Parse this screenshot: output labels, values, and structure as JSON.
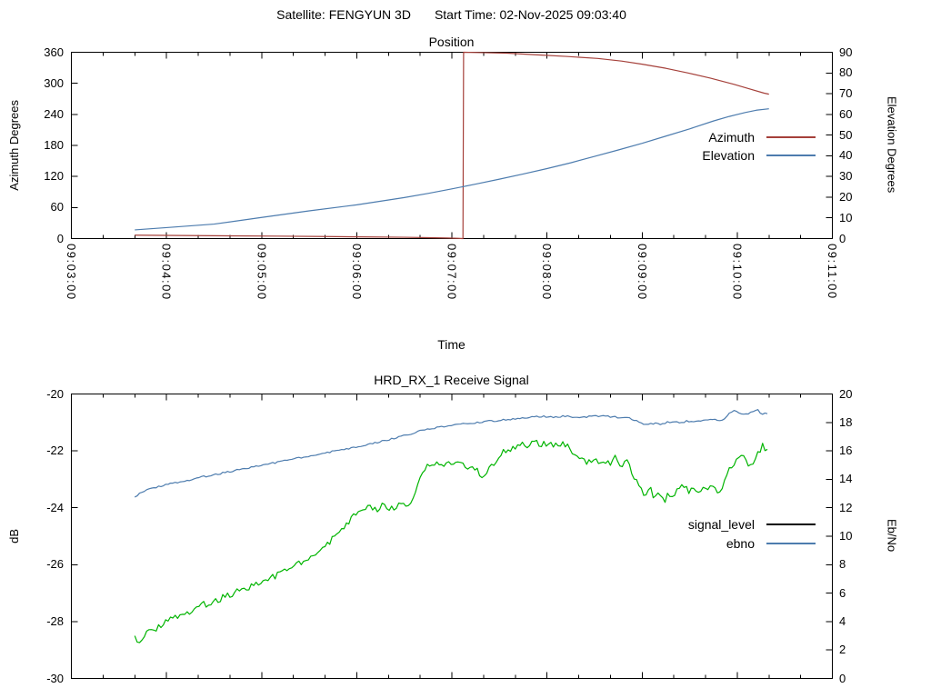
{
  "header": {
    "satellite_label": "Satellite: FENGYUN 3D",
    "start_time_label": "Start Time: 02-Nov-2025 09:03:40"
  },
  "colors": {
    "background": "#ffffff",
    "axis": "#000000",
    "azimuth_red": "#a5403a",
    "steel_blue": "#4d7cae",
    "signal_green": "#00b400",
    "legend_black": "#000000"
  },
  "chart_data": [
    {
      "type": "line",
      "title": "Position",
      "xlabel": "Time",
      "ylabel": "Azimuth Degrees",
      "y2label": "Elevation Degrees",
      "x_tick_labels": [
        "09:03:00",
        "09:04:00",
        "09:05:00",
        "09:06:00",
        "09:07:00",
        "09:08:00",
        "09:09:00",
        "09:10:00",
        "09:11:00"
      ],
      "x_unit": "seconds after 09:03:00",
      "x_range": [
        0,
        480
      ],
      "x_minor_tick_seconds": 20,
      "ylim": [
        0,
        360
      ],
      "y_ticks": [
        0,
        60,
        120,
        180,
        240,
        300,
        360
      ],
      "y2lim": [
        0,
        90
      ],
      "y2_ticks": [
        0,
        10,
        20,
        30,
        40,
        50,
        60,
        70,
        80,
        90
      ],
      "grid": false,
      "legend_position": "inside-right",
      "legend": [
        {
          "label": "Azimuth",
          "color": "#a5403a"
        },
        {
          "label": "Elevation",
          "color": "#4d7cae"
        }
      ],
      "series": [
        {
          "name": "Azimuth",
          "axis": "y1",
          "color": "#a5403a",
          "render_noise": 0,
          "points": [
            [
              40,
              6.6
            ],
            [
              70,
              5.9
            ],
            [
              100,
              5.3
            ],
            [
              130,
              4.7
            ],
            [
              160,
              3.9
            ],
            [
              190,
              3.1
            ],
            [
              210,
              2.5
            ],
            [
              225,
              1.8
            ],
            [
              237,
              1.1
            ],
            [
              244,
              0.5
            ],
            [
              247,
              0
            ],
            [
              247.4,
              360
            ],
            [
              260,
              359.2
            ],
            [
              275,
              358.3
            ],
            [
              294,
              355
            ],
            [
              312,
              352
            ],
            [
              332,
              348
            ],
            [
              347,
              343
            ],
            [
              360,
              337
            ],
            [
              375,
              329
            ],
            [
              389,
              320
            ],
            [
              403,
              310
            ],
            [
              418,
              298
            ],
            [
              428,
              289
            ],
            [
              437,
              281
            ],
            [
              440,
              279
            ]
          ]
        },
        {
          "name": "Elevation",
          "axis": "y2",
          "color": "#4d7cae",
          "render_noise": 0,
          "points": [
            [
              40,
              4.2
            ],
            [
              60,
              5.3
            ],
            [
              90,
              7.0
            ],
            [
              120,
              10.2
            ],
            [
              150,
              13.4
            ],
            [
              180,
              16.3
            ],
            [
              210,
              19.8
            ],
            [
              225,
              21.8
            ],
            [
              240,
              24.0
            ],
            [
              255,
              26.3
            ],
            [
              270,
              28.7
            ],
            [
              285,
              31.2
            ],
            [
              300,
              33.8
            ],
            [
              315,
              36.6
            ],
            [
              330,
              39.7
            ],
            [
              345,
              42.8
            ],
            [
              360,
              46.0
            ],
            [
              375,
              49.5
            ],
            [
              390,
              53.0
            ],
            [
              405,
              56.8
            ],
            [
              415,
              59.0
            ],
            [
              425,
              60.9
            ],
            [
              432,
              62.0
            ],
            [
              440,
              62.7
            ]
          ]
        }
      ]
    },
    {
      "type": "line",
      "title": "HRD_RX_1 Receive Signal",
      "xlabel": "",
      "ylabel": "dB",
      "y2label": "Eb/No",
      "x_tick_labels": [],
      "x_unit": "seconds after 09:03:00",
      "x_range": [
        0,
        480
      ],
      "x_minor_tick_seconds": 20,
      "ylim": [
        -30,
        -20
      ],
      "y_ticks": [
        -30,
        -28,
        -26,
        -24,
        -22,
        -20
      ],
      "y2lim": [
        0,
        20
      ],
      "y2_ticks": [
        0,
        2,
        4,
        6,
        8,
        10,
        12,
        14,
        16,
        18,
        20
      ],
      "grid": false,
      "legend_position": "inside-right",
      "legend": [
        {
          "label": "signal_level",
          "color": "#000000"
        },
        {
          "label": "ebno",
          "color": "#4d7cae"
        }
      ],
      "series": [
        {
          "name": "signal_level",
          "axis": "y1",
          "color": "#00b400",
          "render_noise": 0.12,
          "points": [
            [
              40,
              -28.5
            ],
            [
              43,
              -28.7
            ],
            [
              47,
              -28.35
            ],
            [
              52,
              -28.28
            ],
            [
              58,
              -28.05
            ],
            [
              64,
              -27.9
            ],
            [
              70,
              -27.72
            ],
            [
              76,
              -27.6
            ],
            [
              82,
              -27.45
            ],
            [
              88,
              -27.3
            ],
            [
              94,
              -27.18
            ],
            [
              100,
              -27.05
            ],
            [
              106,
              -26.92
            ],
            [
              112,
              -26.78
            ],
            [
              118,
              -26.65
            ],
            [
              124,
              -26.52
            ],
            [
              130,
              -26.35
            ],
            [
              136,
              -26.18
            ],
            [
              142,
              -26.0
            ],
            [
              148,
              -25.8
            ],
            [
              154,
              -25.6
            ],
            [
              160,
              -25.35
            ],
            [
              166,
              -25.05
            ],
            [
              172,
              -24.7
            ],
            [
              178,
              -24.3
            ],
            [
              182,
              -24.05
            ],
            [
              187,
              -23.95
            ],
            [
              192,
              -24.08
            ],
            [
              197,
              -23.9
            ],
            [
              202,
              -24.02
            ],
            [
              207,
              -23.92
            ],
            [
              211,
              -23.98
            ],
            [
              214,
              -23.75
            ],
            [
              218,
              -23.3
            ],
            [
              222,
              -22.75
            ],
            [
              225,
              -22.5
            ],
            [
              229,
              -22.42
            ],
            [
              233,
              -22.62
            ],
            [
              237,
              -22.38
            ],
            [
              241,
              -22.52
            ],
            [
              245,
              -22.42
            ],
            [
              249,
              -22.65
            ],
            [
              253,
              -22.5
            ],
            [
              257,
              -22.78
            ],
            [
              261,
              -22.95
            ],
            [
              264,
              -22.62
            ],
            [
              268,
              -22.3
            ],
            [
              272,
              -22.08
            ],
            [
              276,
              -21.95
            ],
            [
              280,
              -21.82
            ],
            [
              284,
              -21.72
            ],
            [
              288,
              -21.85
            ],
            [
              292,
              -21.7
            ],
            [
              296,
              -21.8
            ],
            [
              300,
              -21.72
            ],
            [
              304,
              -21.78
            ],
            [
              308,
              -21.7
            ],
            [
              312,
              -21.82
            ],
            [
              316,
              -22.0
            ],
            [
              320,
              -22.2
            ],
            [
              324,
              -22.38
            ],
            [
              328,
              -22.45
            ],
            [
              332,
              -22.35
            ],
            [
              336,
              -22.5
            ],
            [
              340,
              -22.42
            ],
            [
              344,
              -22.2
            ],
            [
              347,
              -22.6
            ],
            [
              350,
              -22.35
            ],
            [
              353,
              -22.7
            ],
            [
              356,
              -23.0
            ],
            [
              359,
              -23.3
            ],
            [
              362,
              -23.58
            ],
            [
              365,
              -23.32
            ],
            [
              368,
              -23.68
            ],
            [
              371,
              -23.42
            ],
            [
              374,
              -23.78
            ],
            [
              377,
              -23.52
            ],
            [
              380,
              -23.62
            ],
            [
              383,
              -23.3
            ],
            [
              386,
              -23.12
            ],
            [
              389,
              -23.48
            ],
            [
              392,
              -23.28
            ],
            [
              395,
              -23.52
            ],
            [
              398,
              -23.32
            ],
            [
              401,
              -23.42
            ],
            [
              404,
              -23.22
            ],
            [
              407,
              -23.48
            ],
            [
              410,
              -23.28
            ],
            [
              413,
              -22.92
            ],
            [
              416,
              -22.6
            ],
            [
              419,
              -22.28
            ],
            [
              422,
              -22.05
            ],
            [
              425,
              -22.32
            ],
            [
              428,
              -22.62
            ],
            [
              431,
              -22.42
            ],
            [
              434,
              -22.0
            ],
            [
              436,
              -21.72
            ],
            [
              438,
              -22.18
            ],
            [
              440,
              -21.5
            ]
          ]
        },
        {
          "name": "ebno",
          "axis": "y2",
          "color": "#4d7cae",
          "render_noise": 0.06,
          "points": [
            [
              40,
              12.75
            ],
            [
              43,
              13.05
            ],
            [
              47,
              13.25
            ],
            [
              52,
              13.42
            ],
            [
              58,
              13.58
            ],
            [
              64,
              13.72
            ],
            [
              70,
              13.85
            ],
            [
              76,
              14.0
            ],
            [
              82,
              14.15
            ],
            [
              88,
              14.3
            ],
            [
              94,
              14.42
            ],
            [
              100,
              14.55
            ],
            [
              106,
              14.68
            ],
            [
              112,
              14.82
            ],
            [
              118,
              14.95
            ],
            [
              124,
              15.08
            ],
            [
              130,
              15.2
            ],
            [
              136,
              15.35
            ],
            [
              142,
              15.48
            ],
            [
              148,
              15.6
            ],
            [
              154,
              15.72
            ],
            [
              160,
              15.85
            ],
            [
              166,
              15.98
            ],
            [
              172,
              16.1
            ],
            [
              178,
              16.22
            ],
            [
              184,
              16.38
            ],
            [
              190,
              16.52
            ],
            [
              196,
              16.68
            ],
            [
              202,
              16.85
            ],
            [
              208,
              17.0
            ],
            [
              214,
              17.2
            ],
            [
              220,
              17.4
            ],
            [
              226,
              17.55
            ],
            [
              232,
              17.65
            ],
            [
              238,
              17.75
            ],
            [
              244,
              17.85
            ],
            [
              250,
              17.92
            ],
            [
              256,
              17.98
            ],
            [
              262,
              18.08
            ],
            [
              268,
              18.12
            ],
            [
              274,
              18.18
            ],
            [
              280,
              18.28
            ],
            [
              286,
              18.32
            ],
            [
              292,
              18.38
            ],
            [
              298,
              18.42
            ],
            [
              304,
              18.38
            ],
            [
              310,
              18.44
            ],
            [
              316,
              18.4
            ],
            [
              322,
              18.35
            ],
            [
              328,
              18.42
            ],
            [
              334,
              18.45
            ],
            [
              340,
              18.4
            ],
            [
              346,
              18.35
            ],
            [
              352,
              18.28
            ],
            [
              356,
              18.15
            ],
            [
              360,
              17.92
            ],
            [
              364,
              17.85
            ],
            [
              368,
              17.95
            ],
            [
              372,
              17.88
            ],
            [
              376,
              18.0
            ],
            [
              380,
              18.05
            ],
            [
              384,
              17.98
            ],
            [
              388,
              18.08
            ],
            [
              392,
              18.04
            ],
            [
              396,
              18.1
            ],
            [
              400,
              18.14
            ],
            [
              404,
              18.2
            ],
            [
              408,
              18.15
            ],
            [
              412,
              18.25
            ],
            [
              415,
              18.6
            ],
            [
              418,
              18.9
            ],
            [
              421,
              18.72
            ],
            [
              424,
              18.55
            ],
            [
              427,
              18.6
            ],
            [
              430,
              18.75
            ],
            [
              433,
              18.85
            ],
            [
              436,
              18.58
            ],
            [
              440,
              18.7
            ]
          ]
        }
      ]
    }
  ]
}
